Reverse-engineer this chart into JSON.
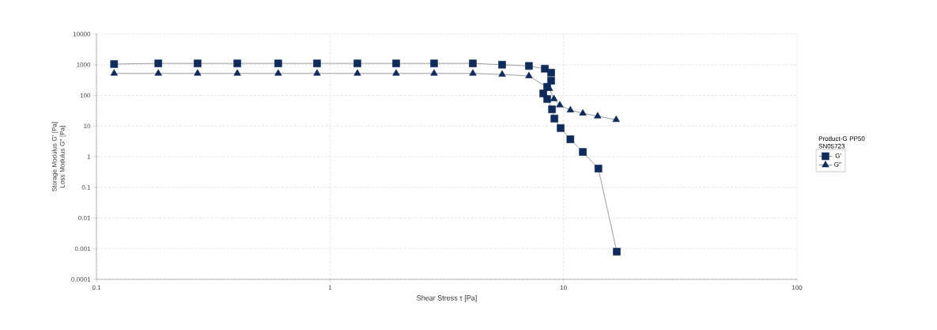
{
  "chart_data": {
    "type": "line",
    "xlabel": "Shear Stress τ [Pa]",
    "ylabel": "Storage Modulus G' [Pa] Loss Modulus G'' [Pa]",
    "legend_title": "Product-G PP50 SN05723",
    "log": "xy",
    "grid": true,
    "legend": "right",
    "line_style": "solid",
    "xlim": [
      0.1,
      100
    ],
    "xticks": [
      0.1,
      1,
      10,
      100
    ],
    "ylim": [
      0.0001,
      10000
    ],
    "yticks": [
      0.0001,
      0.001,
      0.01,
      0.1,
      1,
      10,
      100,
      1000,
      10000
    ],
    "series": [
      {
        "name": "G'",
        "color": "#0f2b5b",
        "marker": "square",
        "x": [
          0.119,
          0.184,
          0.271,
          0.401,
          0.6,
          0.88,
          1.31,
          1.92,
          2.79,
          4.09,
          5.46,
          7.11,
          8.32,
          8.85,
          8.85,
          8.51,
          8.19,
          8.51,
          8.93,
          9.14,
          9.72,
          10.7,
          12.1,
          14.1,
          16.9
        ],
        "values": [
          1050,
          1100,
          1100,
          1100,
          1100,
          1100,
          1100,
          1100,
          1100,
          1100,
          1000,
          910,
          740,
          550,
          300,
          190,
          115,
          76,
          35,
          17.5,
          8.6,
          3.7,
          1.43,
          0.41,
          0.0008
        ]
      },
      {
        "name": "G''",
        "color": "#0f2b5b",
        "marker": "triangle",
        "x": [
          0.119,
          0.184,
          0.271,
          0.401,
          0.6,
          0.88,
          1.31,
          1.92,
          2.79,
          4.09,
          5.46,
          7.11,
          8.7,
          9.1,
          9.64,
          10.7,
          12.1,
          14.0,
          16.8
        ],
        "values": [
          520,
          520,
          520,
          520,
          520,
          520,
          520,
          520,
          520,
          520,
          480,
          430,
          165,
          76,
          48,
          33,
          26,
          21,
          16
        ]
      }
    ]
  }
}
